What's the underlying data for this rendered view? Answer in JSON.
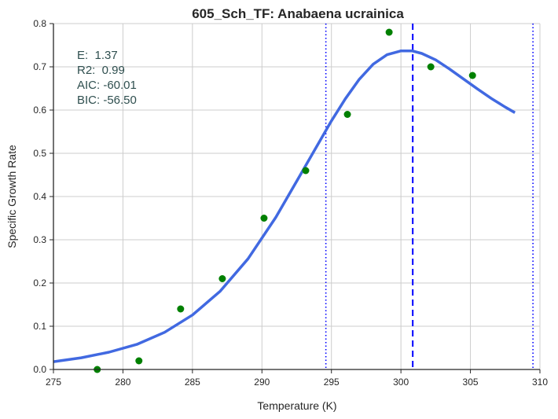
{
  "chart_data": {
    "type": "scatter",
    "title": "605_Sch_TF: Anabaena ucrainica",
    "xlabel": "Temperature (K)",
    "ylabel": "Specific Growth Rate",
    "xlim": [
      275,
      310
    ],
    "ylim": [
      0,
      0.8
    ],
    "xticks": [
      275,
      280,
      285,
      290,
      295,
      300,
      305,
      310
    ],
    "yticks": [
      0.0,
      0.1,
      0.2,
      0.3,
      0.4,
      0.5,
      0.6,
      0.7,
      0.8
    ],
    "grid": true,
    "points": {
      "x": [
        278.15,
        281.15,
        284.15,
        287.15,
        290.15,
        293.15,
        296.15,
        299.15,
        302.15,
        305.15
      ],
      "y": [
        0.0,
        0.02,
        0.14,
        0.21,
        0.35,
        0.46,
        0.59,
        0.78,
        0.7,
        0.68
      ],
      "color": "#008000"
    },
    "fit": {
      "x": [
        275,
        277,
        279,
        281,
        283,
        285,
        287,
        289,
        291,
        293,
        295,
        296,
        297,
        298,
        299,
        300,
        300.8,
        301.5,
        302.5,
        303.5,
        304.5,
        305.5,
        306.5,
        307.5,
        308.2
      ],
      "y": [
        0.018,
        0.027,
        0.04,
        0.058,
        0.086,
        0.126,
        0.181,
        0.256,
        0.352,
        0.463,
        0.575,
        0.626,
        0.671,
        0.706,
        0.728,
        0.737,
        0.737,
        0.731,
        0.716,
        0.695,
        0.672,
        0.649,
        0.627,
        0.607,
        0.594
      ],
      "color": "#4169e1"
    },
    "vlines": [
      {
        "x": 294.6,
        "style": "dotted",
        "color": "#0000ff"
      },
      {
        "x": 300.85,
        "style": "dashed",
        "color": "#0000ff"
      },
      {
        "x": 309.5,
        "style": "dotted",
        "color": "#0000ff"
      }
    ],
    "annotations": [
      "E:  1.37",
      "R2:  0.99",
      "AIC: -60.01",
      "BIC: -56.50"
    ],
    "annotation_color": "#2f4f4f"
  }
}
